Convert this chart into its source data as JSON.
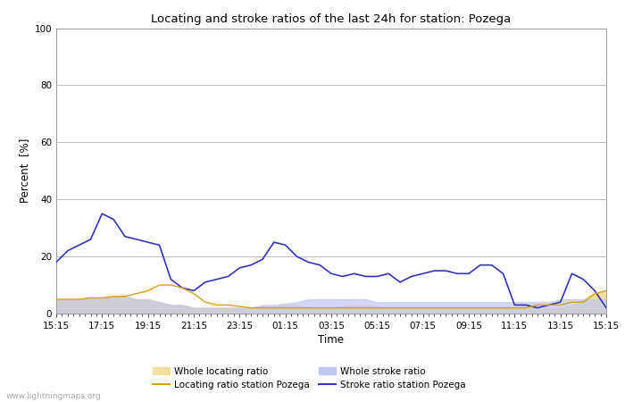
{
  "title": "Locating and stroke ratios of the last 24h for station: Pozega",
  "xlabel": "Time",
  "ylabel": "Percent  [%]",
  "xlim": [
    0,
    48
  ],
  "ylim": [
    0,
    100
  ],
  "yticks_major": [
    0,
    20,
    40,
    60,
    80,
    100
  ],
  "yticks_minor": [
    10,
    30,
    50,
    70,
    90
  ],
  "xtick_labels": [
    "15:15",
    "17:15",
    "19:15",
    "21:15",
    "23:15",
    "01:15",
    "03:15",
    "05:15",
    "07:15",
    "09:15",
    "11:15",
    "13:15",
    "15:15"
  ],
  "watermark": "www.lightningmaps.org",
  "background_color": "#ffffff",
  "plot_bg_color": "#ffffff",
  "grid_color": "#bbbbbb",
  "whole_locating_color": "#f0dfa0",
  "whole_stroke_color": "#c0c8f0",
  "locating_station_color": "#d4a010",
  "stroke_station_color": "#3333bb",
  "x": [
    0,
    1,
    2,
    3,
    4,
    5,
    6,
    7,
    8,
    9,
    10,
    11,
    12,
    13,
    14,
    15,
    16,
    17,
    18,
    19,
    20,
    21,
    22,
    23,
    24,
    25,
    26,
    27,
    28,
    29,
    30,
    31,
    32,
    33,
    34,
    35,
    36,
    37,
    38,
    39,
    40,
    41,
    42,
    43,
    44,
    45,
    46,
    47,
    48
  ],
  "whole_locating": [
    5,
    5,
    5,
    5.5,
    5.5,
    6,
    6,
    5,
    5,
    4,
    3,
    3,
    2,
    2,
    2,
    2,
    2,
    2,
    2.5,
    2.5,
    3,
    3,
    2,
    2,
    2,
    2.5,
    3,
    3,
    2.5,
    2,
    2,
    2,
    2,
    2,
    2,
    2,
    2,
    2,
    2,
    2,
    2,
    2,
    2,
    2,
    2,
    3,
    5,
    7,
    8
  ],
  "whole_stroke": [
    5,
    5,
    5,
    5.5,
    5.5,
    6,
    6,
    5,
    5,
    4,
    3,
    3,
    2,
    2,
    2,
    2,
    2,
    2,
    3,
    3,
    3.5,
    4,
    5,
    5,
    5,
    5,
    5,
    5,
    4,
    4,
    4,
    4,
    4,
    4,
    4,
    4,
    4,
    4,
    4,
    4,
    4,
    4,
    4,
    4,
    5,
    5,
    5,
    5,
    5
  ],
  "locating_station": [
    5,
    5,
    5,
    5.5,
    5.5,
    6,
    6,
    7,
    8,
    10,
    10,
    9,
    7,
    4,
    3,
    3,
    2.5,
    2,
    2,
    2,
    2,
    2,
    2,
    2,
    2,
    2,
    2,
    2,
    2,
    2,
    2,
    2,
    2,
    2,
    2,
    2,
    2,
    2,
    2,
    2,
    2,
    2,
    3,
    3,
    3,
    4,
    4,
    7,
    8
  ],
  "stroke_station": [
    18,
    22,
    24,
    26,
    35,
    33,
    27,
    26,
    25,
    24,
    12,
    9,
    8,
    11,
    12,
    13,
    16,
    17,
    19,
    25,
    24,
    20,
    18,
    17,
    14,
    13,
    14,
    13,
    13,
    14,
    11,
    13,
    14,
    15,
    15,
    14,
    14,
    17,
    17,
    14,
    3,
    3,
    2,
    3,
    4,
    14,
    12,
    8,
    2
  ]
}
